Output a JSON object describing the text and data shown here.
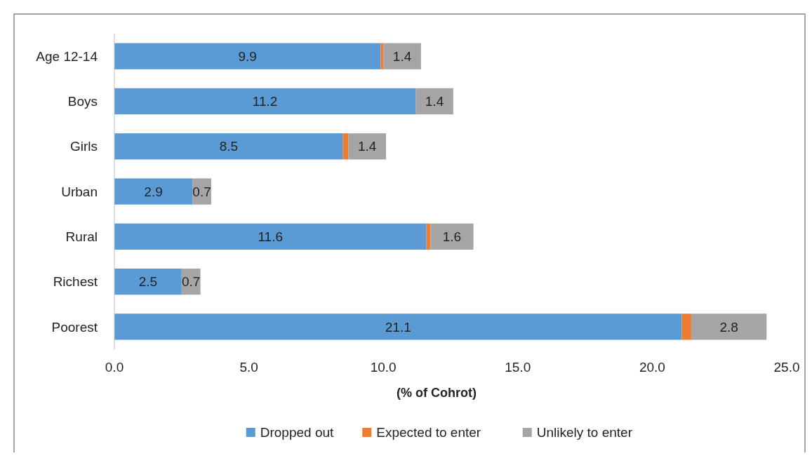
{
  "chart_data": {
    "type": "bar",
    "orientation": "horizontal",
    "stacked": true,
    "xlabel": "(% of Cohrot)",
    "categories": [
      "Age 12-14",
      "Boys",
      "Girls",
      "Urban",
      "Rural",
      "Richest",
      "Poorest"
    ],
    "series": [
      {
        "name": "Dropped out",
        "color": "#5b9bd5",
        "values": [
          9.9,
          11.2,
          8.5,
          2.9,
          11.6,
          2.5,
          21.1
        ],
        "value_labels": [
          "9.9",
          "11.2",
          "8.5",
          "2.9",
          "11.6",
          "2.5",
          "21.1"
        ]
      },
      {
        "name": "Expected to enter",
        "color": "#ed7d31",
        "values": [
          0.1,
          0,
          0.2,
          0,
          0.15,
          0,
          0.35
        ]
      },
      {
        "name": "Unlikely to enter",
        "color": "#a5a5a5",
        "values": [
          1.4,
          1.4,
          1.4,
          0.7,
          1.6,
          0.7,
          2.8
        ],
        "value_labels": [
          "1.4",
          "1.4",
          "1.4",
          "0.7",
          "1.6",
          "0.7",
          "2.8"
        ]
      }
    ],
    "xlim": [
      0,
      25
    ],
    "xticks": [
      {
        "value": 0,
        "label": "0.0"
      },
      {
        "value": 5,
        "label": "5.0"
      },
      {
        "value": 10,
        "label": "10.0"
      },
      {
        "value": 15,
        "label": "15.0"
      },
      {
        "value": 20,
        "label": "20.0"
      },
      {
        "value": 25,
        "label": "25.0"
      }
    ],
    "grid": false,
    "legend": "bottom"
  }
}
